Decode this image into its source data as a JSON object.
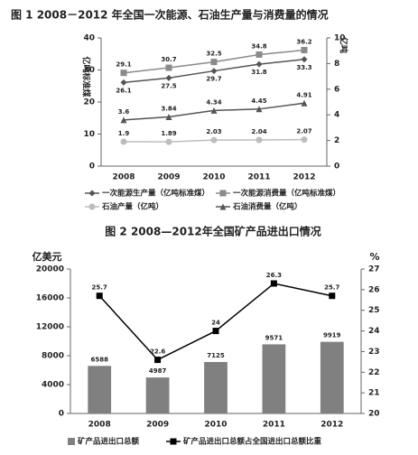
{
  "chart_data": [
    {
      "type": "line",
      "title": "图 1 2008－2012 年全国一次能源、石油生产量与消费量的情况",
      "ylabel": "亿吨标准煤",
      "y2label": "亿吨",
      "categories": [
        "2008",
        "2009",
        "2010",
        "2011",
        "2012"
      ],
      "ylim": [
        0,
        40
      ],
      "yticks": [
        0,
        10,
        20,
        30,
        40
      ],
      "y2lim": [
        0,
        10
      ],
      "y2ticks": [
        0,
        2,
        4,
        6,
        8,
        10
      ],
      "series": [
        {
          "name": "一次能源生产量（亿吨标准煤）",
          "color": "#555555",
          "marker": "diamond",
          "values": [
            26.1,
            27.5,
            29.7,
            31.8,
            33.3
          ]
        },
        {
          "name": "一次能源消费量（亿吨标准煤）",
          "color": "#8a8a8a",
          "marker": "square",
          "values": [
            29.1,
            30.7,
            32.5,
            34.8,
            36.2
          ]
        },
        {
          "name": "石油产量（亿吨）",
          "color": "#bdbdbd",
          "marker": "circle",
          "axis": "y2",
          "values": [
            1.9,
            1.89,
            2.03,
            2.04,
            2.07
          ]
        },
        {
          "name": "石油消费量（亿吨）",
          "color": "#555555",
          "marker": "triangle",
          "axis": "y2",
          "values": [
            3.6,
            3.84,
            4.34,
            4.45,
            4.91
          ]
        }
      ]
    },
    {
      "type": "bar",
      "title": "图 2  2008—2012年全国矿产品进出口情况",
      "ylabel": "亿美元",
      "y2label": "%",
      "categories": [
        "2008",
        "2009",
        "2010",
        "2011",
        "2012"
      ],
      "ylim": [
        0,
        20000
      ],
      "yticks": [
        0,
        4000,
        8000,
        12000,
        16000,
        20000
      ],
      "y2lim": [
        20,
        27
      ],
      "y2ticks": [
        20,
        21,
        22,
        23,
        24,
        25,
        26,
        27
      ],
      "series": [
        {
          "name": "矿产品进出口总额",
          "color": "#808080",
          "type": "bar",
          "values": [
            6588,
            4987,
            7125,
            9571,
            9919
          ]
        },
        {
          "name": "矿产品进出口总额占全国进出口总额比重",
          "color": "#000000",
          "type": "line",
          "marker": "square",
          "axis": "y2",
          "values": [
            25.7,
            22.6,
            24,
            26.3,
            25.7
          ]
        }
      ]
    }
  ]
}
